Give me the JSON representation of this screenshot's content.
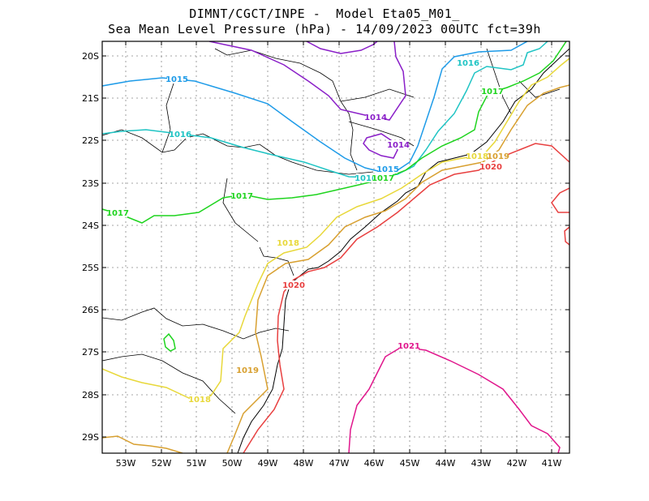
{
  "title_line1": "DIMNT/CGCT/INPE -  Model Eta05_M01_",
  "title_line2": "Sea Mean Level Pressure (hPa) - 14/09/2023 00UTC fct=39h",
  "lat_labels": [
    "20S",
    "21S",
    "22S",
    "23S",
    "24S",
    "25S",
    "26S",
    "27S",
    "28S",
    "29S"
  ],
  "lon_labels": [
    "53W",
    "52W",
    "51W",
    "50W",
    "49W",
    "48W",
    "47W",
    "46W",
    "45W",
    "44W",
    "43W",
    "42W",
    "41W"
  ],
  "colors": {
    "c1014": "#8a1fc8",
    "c1015": "#1e9be8",
    "c1016": "#1fc4c4",
    "c1017": "#1ed41e",
    "c1018": "#e8d83a",
    "c1019": "#d8a030",
    "c1020": "#e84040",
    "c1021": "#e0168c",
    "border": "#000000",
    "grid": "#888888"
  },
  "contour_labels": [
    {
      "id": "l1014a",
      "text": "1014",
      "color": "c1014"
    },
    {
      "id": "l1014b",
      "text": "1014",
      "color": "c1014"
    },
    {
      "id": "l1015a",
      "text": "1015",
      "color": "c1015"
    },
    {
      "id": "l1015b",
      "text": "1015",
      "color": "c1015"
    },
    {
      "id": "l1016a",
      "text": "1016",
      "color": "c1016"
    },
    {
      "id": "l1016b",
      "text": "1016",
      "color": "c1016"
    },
    {
      "id": "l1016c",
      "text": "1016",
      "color": "c1016"
    },
    {
      "id": "l1017a",
      "text": "1017",
      "color": "c1017"
    },
    {
      "id": "l1017b",
      "text": "1017",
      "color": "c1017"
    },
    {
      "id": "l1017c",
      "text": "1017",
      "color": "c1017"
    },
    {
      "id": "l1017d",
      "text": "1017",
      "color": "c1017"
    },
    {
      "id": "l1018a",
      "text": "1018",
      "color": "c1018"
    },
    {
      "id": "l1018b",
      "text": "1018",
      "color": "c1018"
    },
    {
      "id": "l1018c",
      "text": "1018",
      "color": "c1018"
    },
    {
      "id": "l1019a",
      "text": "1019",
      "color": "c1019"
    },
    {
      "id": "l1019b",
      "text": "1019",
      "color": "c1019"
    },
    {
      "id": "l1020a",
      "text": "1020",
      "color": "c1020"
    },
    {
      "id": "l1020b",
      "text": "1020",
      "color": "c1020"
    },
    {
      "id": "l1021a",
      "text": "1021",
      "color": "c1021"
    }
  ]
}
